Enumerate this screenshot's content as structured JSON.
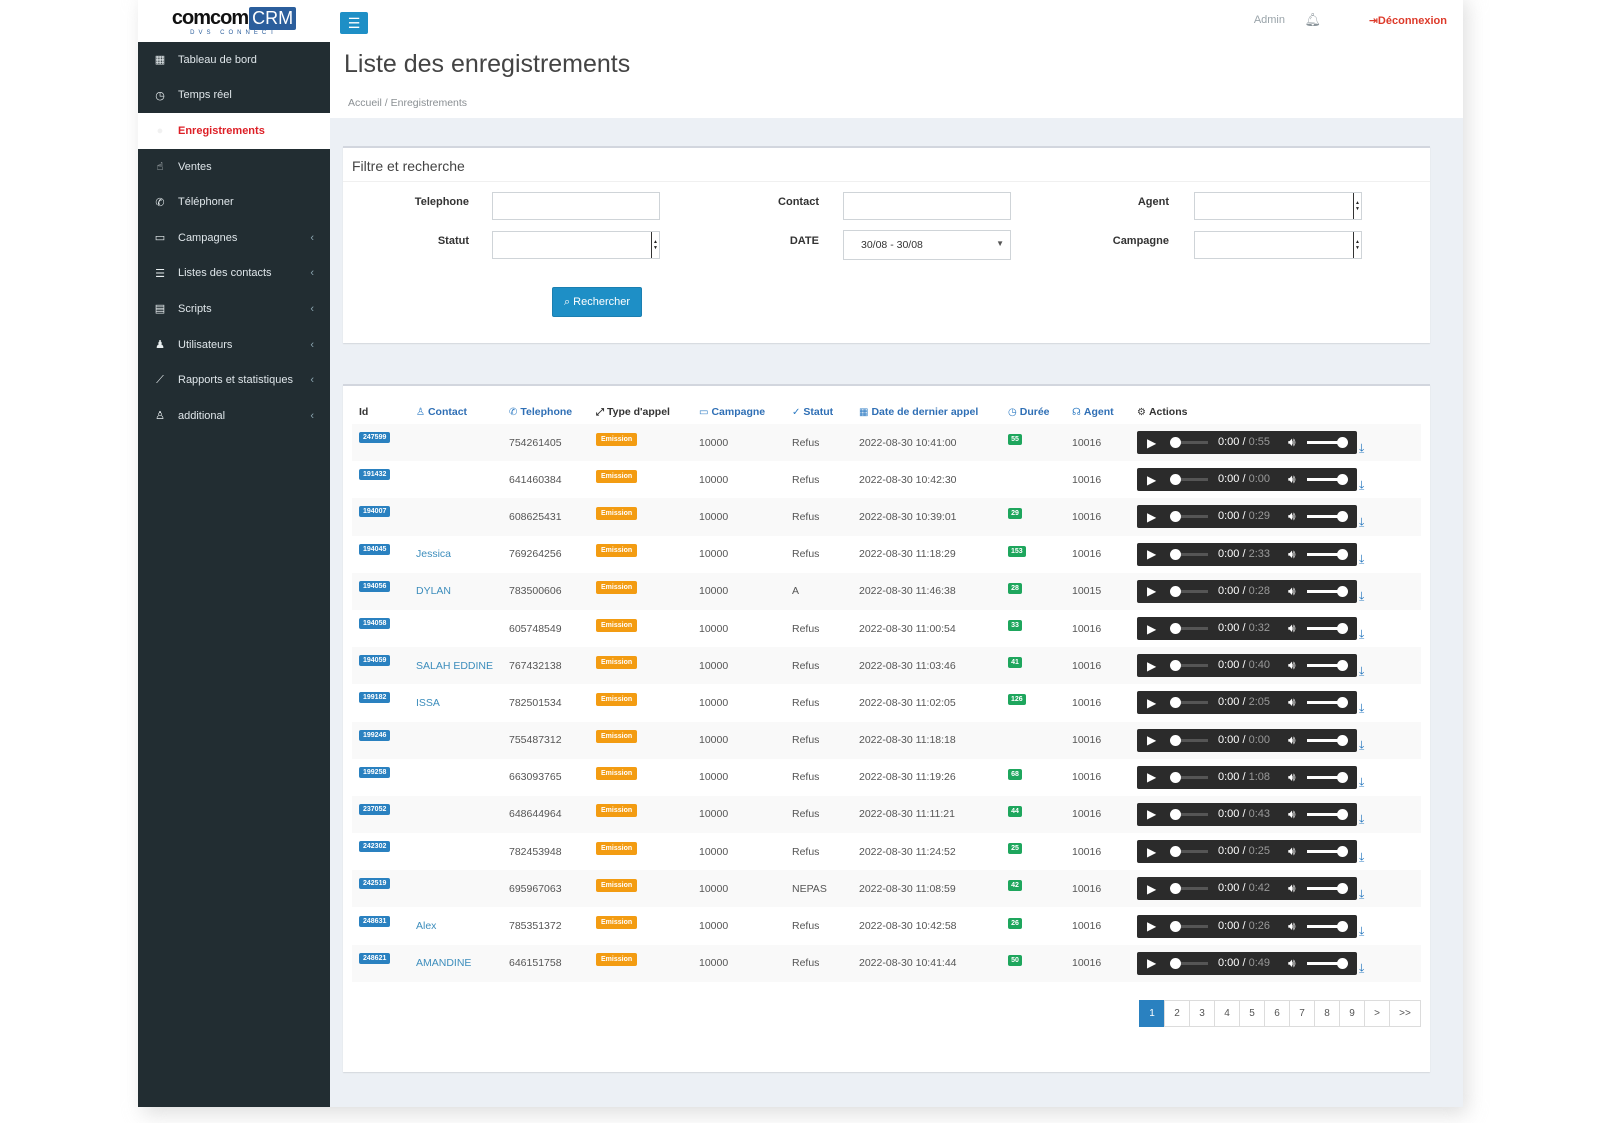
{
  "brand": {
    "logo_left": "comcom",
    "logo_right": "CRM",
    "logo_sub": "DVS CONNECT"
  },
  "topbar": {
    "user": "Admin",
    "logout": "Déconnexion"
  },
  "sidebar": {
    "items": [
      {
        "label": "Tableau de bord",
        "icon": "dashboard-icon",
        "glyph": "▦",
        "chevron": ""
      },
      {
        "label": "Temps réel",
        "icon": "clock-icon",
        "glyph": "◷",
        "chevron": ""
      },
      {
        "label": "Enregistrements",
        "icon": "record-icon",
        "glyph": "●",
        "chevron": ""
      },
      {
        "label": "Ventes",
        "icon": "thumbs-up-icon",
        "glyph": "☝",
        "chevron": ""
      },
      {
        "label": "Téléphoner",
        "icon": "phone-icon",
        "glyph": "✆",
        "chevron": ""
      },
      {
        "label": "Campagnes",
        "icon": "folder-open-icon",
        "glyph": "▭",
        "chevron": "‹"
      },
      {
        "label": "Listes des contacts",
        "icon": "list-icon",
        "glyph": "☰",
        "chevron": "‹"
      },
      {
        "label": "Scripts",
        "icon": "file-icon",
        "glyph": "▤",
        "chevron": "‹"
      },
      {
        "label": "Utilisateurs",
        "icon": "users-icon",
        "glyph": "♟",
        "chevron": "‹"
      },
      {
        "label": "Rapports et statistiques",
        "icon": "line-chart-icon",
        "glyph": "⟋",
        "chevron": "‹"
      },
      {
        "label": "additional",
        "icon": "user-icon",
        "glyph": "♙",
        "chevron": "‹"
      }
    ]
  },
  "header": {
    "title": "Liste des enregistrements",
    "breadcrumb": "Accueil / Enregistrements"
  },
  "filter": {
    "title": "Filtre et recherche",
    "telephone_label": "Telephone",
    "contact_label": "Contact",
    "agent_label": "Agent",
    "statut_label": "Statut",
    "date_label": "DATE",
    "date_value": "30/08  -  30/08",
    "campagne_label": "Campagne",
    "search_button": "Rechercher"
  },
  "table": {
    "columns": [
      "Id",
      "Contact",
      "Telephone",
      "Type d'appel",
      "Campagne",
      "Statut",
      "Date de dernier appel",
      "Durée",
      "Agent",
      "Actions"
    ],
    "player_current": "0:00",
    "rows": [
      {
        "id": "247599",
        "contact": "",
        "telephone": "754261405",
        "type": "Emission",
        "campagne": "10000",
        "statut": "Refus",
        "date": "2022-08-30 10:41:00",
        "duree": "55",
        "agent": "10016",
        "total": "0:55"
      },
      {
        "id": "191432",
        "contact": "",
        "telephone": "641460384",
        "type": "Emission",
        "campagne": "10000",
        "statut": "Refus",
        "date": "2022-08-30 10:42:30",
        "duree": "",
        "agent": "10016",
        "total": "0:00"
      },
      {
        "id": "194007",
        "contact": "",
        "telephone": "608625431",
        "type": "Emission",
        "campagne": "10000",
        "statut": "Refus",
        "date": "2022-08-30 10:39:01",
        "duree": "29",
        "agent": "10016",
        "total": "0:29"
      },
      {
        "id": "194045",
        "contact": "Jessica",
        "telephone": "769264256",
        "type": "Emission",
        "campagne": "10000",
        "statut": "Refus",
        "date": "2022-08-30 11:18:29",
        "duree": "153",
        "agent": "10016",
        "total": "2:33"
      },
      {
        "id": "194056",
        "contact": "DYLAN",
        "telephone": "783500606",
        "type": "Emission",
        "campagne": "10000",
        "statut": "A",
        "date": "2022-08-30 11:46:38",
        "duree": "28",
        "agent": "10015",
        "total": "0:28"
      },
      {
        "id": "194058",
        "contact": "",
        "telephone": "605748549",
        "type": "Emission",
        "campagne": "10000",
        "statut": "Refus",
        "date": "2022-08-30 11:00:54",
        "duree": "33",
        "agent": "10016",
        "total": "0:32"
      },
      {
        "id": "194059",
        "contact": "SALAH EDDINE",
        "telephone": "767432138",
        "type": "Emission",
        "campagne": "10000",
        "statut": "Refus",
        "date": "2022-08-30 11:03:46",
        "duree": "41",
        "agent": "10016",
        "total": "0:40"
      },
      {
        "id": "199182",
        "contact": "ISSA",
        "telephone": "782501534",
        "type": "Emission",
        "campagne": "10000",
        "statut": "Refus",
        "date": "2022-08-30 11:02:05",
        "duree": "126",
        "agent": "10016",
        "total": "2:05"
      },
      {
        "id": "199246",
        "contact": "",
        "telephone": "755487312",
        "type": "Emission",
        "campagne": "10000",
        "statut": "Refus",
        "date": "2022-08-30 11:18:18",
        "duree": "",
        "agent": "10016",
        "total": "0:00"
      },
      {
        "id": "199258",
        "contact": "",
        "telephone": "663093765",
        "type": "Emission",
        "campagne": "10000",
        "statut": "Refus",
        "date": "2022-08-30 11:19:26",
        "duree": "68",
        "agent": "10016",
        "total": "1:08"
      },
      {
        "id": "237052",
        "contact": "",
        "telephone": "648644964",
        "type": "Emission",
        "campagne": "10000",
        "statut": "Refus",
        "date": "2022-08-30 11:11:21",
        "duree": "44",
        "agent": "10016",
        "total": "0:43"
      },
      {
        "id": "242302",
        "contact": "",
        "telephone": "782453948",
        "type": "Emission",
        "campagne": "10000",
        "statut": "Refus",
        "date": "2022-08-30 11:24:52",
        "duree": "25",
        "agent": "10016",
        "total": "0:25"
      },
      {
        "id": "242519",
        "contact": "",
        "telephone": "695967063",
        "type": "Emission",
        "campagne": "10000",
        "statut": "NEPAS",
        "date": "2022-08-30 11:08:59",
        "duree": "42",
        "agent": "10016",
        "total": "0:42"
      },
      {
        "id": "248631",
        "contact": "Alex",
        "telephone": "785351372",
        "type": "Emission",
        "campagne": "10000",
        "statut": "Refus",
        "date": "2022-08-30 10:42:58",
        "duree": "26",
        "agent": "10016",
        "total": "0:26"
      },
      {
        "id": "248621",
        "contact": "AMANDINE",
        "telephone": "646151758",
        "type": "Emission",
        "campagne": "10000",
        "statut": "Refus",
        "date": "2022-08-30 10:41:44",
        "duree": "50",
        "agent": "10016",
        "total": "0:49"
      }
    ]
  },
  "pagination": {
    "pages": [
      "1",
      "2",
      "3",
      "4",
      "5",
      "6",
      "7",
      "8",
      "9",
      ">",
      ">>"
    ],
    "active": "1"
  },
  "colors": {
    "sidebar": "#222d32",
    "primary": "#2a81c0",
    "warning": "#f39c12",
    "success": "#1ea65d",
    "danger": "#dd1f26"
  }
}
